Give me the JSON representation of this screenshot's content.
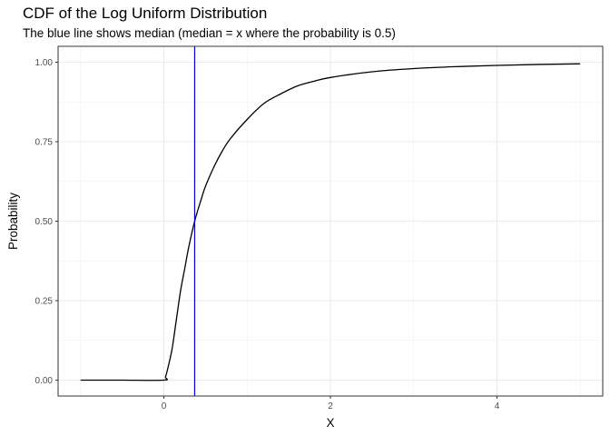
{
  "chart_data": {
    "type": "line",
    "title": "CDF of the Log Uniform Distribution",
    "subtitle": "The blue line shows median (median = x where the probability is 0.5)",
    "xlabel": "X",
    "ylabel": "Probability",
    "xlim": [
      -1,
      5
    ],
    "ylim": [
      0,
      1
    ],
    "xticks": [
      0,
      2,
      4
    ],
    "yticks": [
      0.0,
      0.25,
      0.5,
      0.75,
      1.0
    ],
    "ytick_labels": [
      "0.00",
      "0.25",
      "0.50",
      "0.75",
      "1.00"
    ],
    "xtick_labels": [
      "0",
      "2",
      "4"
    ],
    "grid": true,
    "series": [
      {
        "color": "#000000",
        "x": [
          -1,
          -0.5,
          0,
          0.02,
          0.05,
          0.1,
          0.15,
          0.2,
          0.25,
          0.3,
          0.37,
          0.45,
          0.5,
          0.6,
          0.7,
          0.8,
          1.0,
          1.2,
          1.4,
          1.6,
          1.8,
          2.0,
          2.5,
          3.0,
          3.5,
          4.0,
          4.5,
          5.0
        ],
        "y": [
          0,
          0,
          0,
          0.01,
          0.04,
          0.1,
          0.19,
          0.28,
          0.35,
          0.42,
          0.5,
          0.57,
          0.61,
          0.67,
          0.72,
          0.76,
          0.82,
          0.87,
          0.9,
          0.925,
          0.94,
          0.952,
          0.97,
          0.98,
          0.986,
          0.99,
          0.993,
          0.995
        ]
      }
    ],
    "median_line": {
      "x": 0.37,
      "color": "#0000cc"
    }
  }
}
